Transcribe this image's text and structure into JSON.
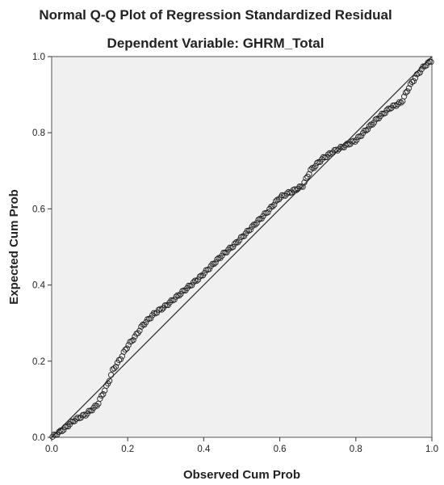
{
  "chart_data": {
    "type": "scatter",
    "title": "Normal Q-Q Plot of Regression Standardized Residual",
    "subtitle": "Dependent Variable: GHRM_Total",
    "xlabel": "Observed Cum Prob",
    "ylabel": "Expected Cum Prob",
    "xlim": [
      0.0,
      1.0
    ],
    "ylim": [
      0.0,
      1.0
    ],
    "x_ticks": [
      "0.0",
      "0.2",
      "0.4",
      "0.6",
      "0.8",
      "1.0"
    ],
    "y_ticks": [
      "0.0",
      "0.2",
      "0.4",
      "0.6",
      "0.8",
      "1.0"
    ],
    "reference_line": {
      "from": [
        0.0,
        0.0
      ],
      "to": [
        1.0,
        1.0
      ]
    },
    "grid": false,
    "plot_background": "#f0f0f0",
    "marker": "open-circle",
    "marker_color": "#222222",
    "curve": [
      [
        0.0,
        0.0
      ],
      [
        0.03,
        0.02
      ],
      [
        0.06,
        0.045
      ],
      [
        0.09,
        0.06
      ],
      [
        0.12,
        0.085
      ],
      [
        0.135,
        0.115
      ],
      [
        0.15,
        0.145
      ],
      [
        0.16,
        0.175
      ],
      [
        0.18,
        0.205
      ],
      [
        0.2,
        0.24
      ],
      [
        0.22,
        0.265
      ],
      [
        0.24,
        0.295
      ],
      [
        0.27,
        0.325
      ],
      [
        0.3,
        0.345
      ],
      [
        0.33,
        0.37
      ],
      [
        0.36,
        0.395
      ],
      [
        0.39,
        0.42
      ],
      [
        0.42,
        0.45
      ],
      [
        0.45,
        0.48
      ],
      [
        0.48,
        0.505
      ],
      [
        0.51,
        0.535
      ],
      [
        0.54,
        0.565
      ],
      [
        0.57,
        0.595
      ],
      [
        0.6,
        0.63
      ],
      [
        0.64,
        0.65
      ],
      [
        0.66,
        0.66
      ],
      [
        0.68,
        0.7
      ],
      [
        0.71,
        0.73
      ],
      [
        0.74,
        0.75
      ],
      [
        0.77,
        0.765
      ],
      [
        0.8,
        0.78
      ],
      [
        0.83,
        0.81
      ],
      [
        0.86,
        0.84
      ],
      [
        0.89,
        0.865
      ],
      [
        0.92,
        0.88
      ],
      [
        0.94,
        0.92
      ],
      [
        0.96,
        0.95
      ],
      [
        0.98,
        0.975
      ],
      [
        1.0,
        0.99
      ]
    ],
    "n_points": 240
  }
}
